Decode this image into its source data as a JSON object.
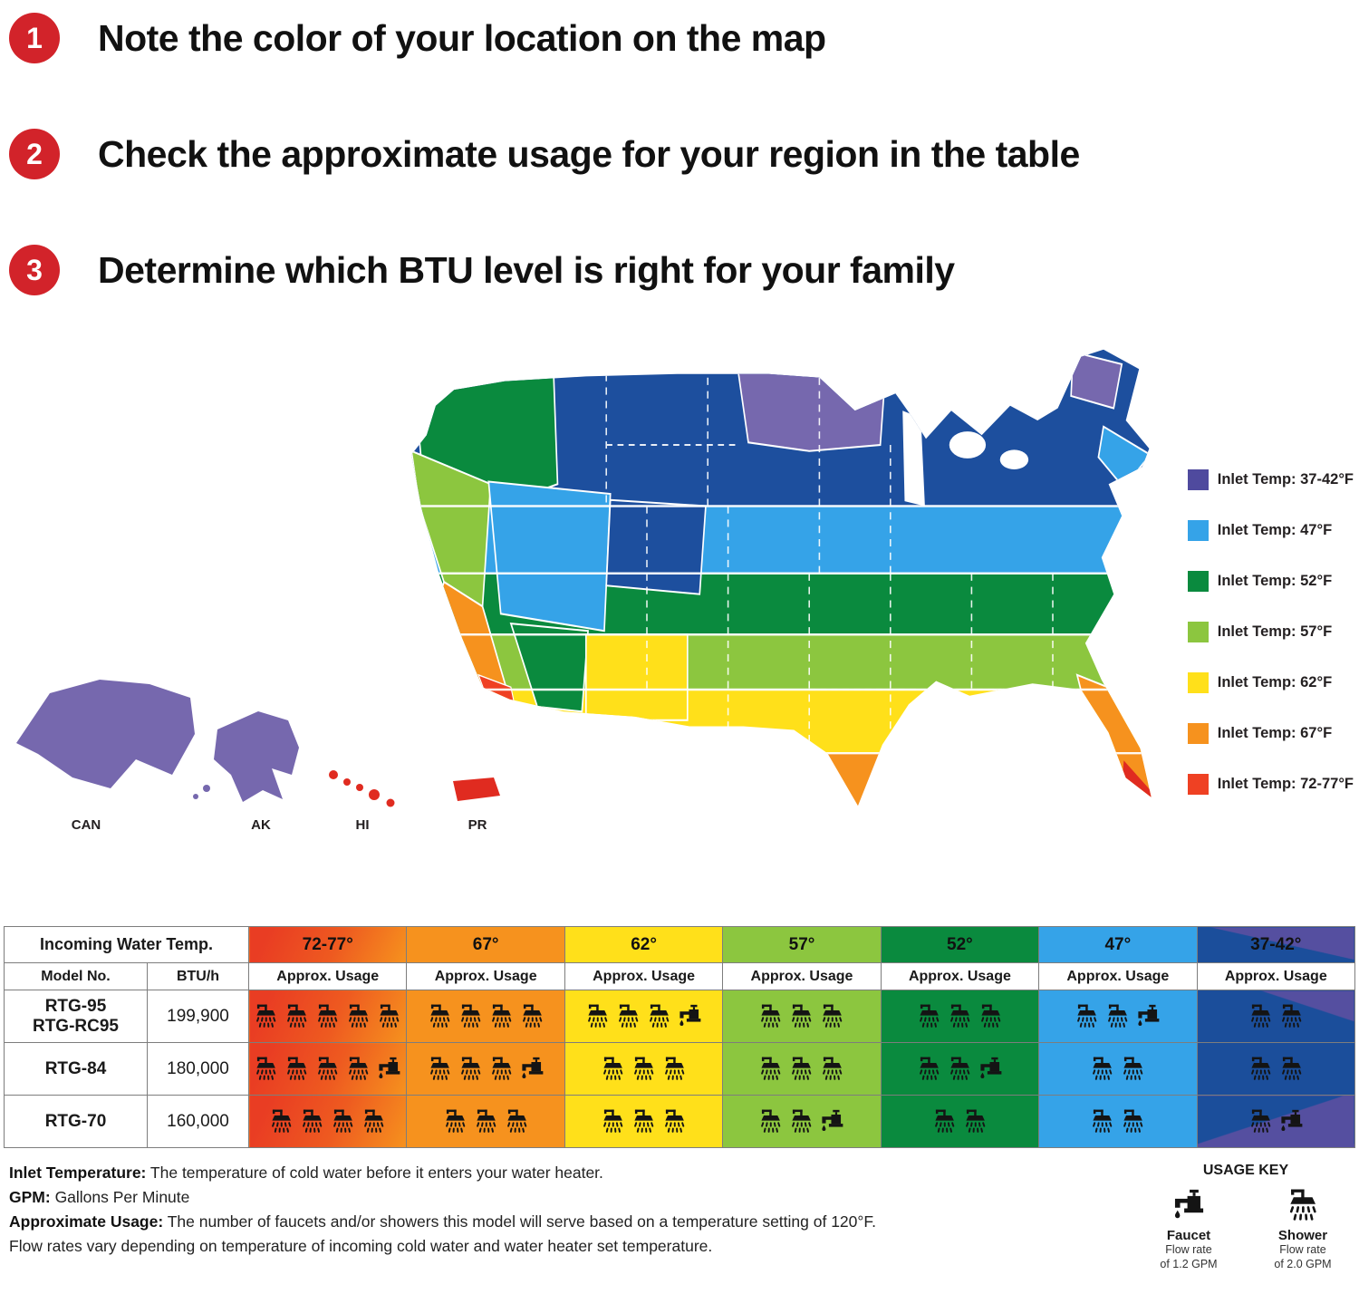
{
  "steps": [
    {
      "num": "1",
      "text": "Note the color of your location on the map"
    },
    {
      "num": "2",
      "text": "Check the approximate usage for your region in the table"
    },
    {
      "num": "3",
      "text": "Determine which BTU level is right for your family"
    }
  ],
  "colors": {
    "step_badge": "#D2232A",
    "map_red": "#E02B20",
    "map_purple": "#7668AE",
    "navy": "#1B4E9B"
  },
  "map": {
    "legend": [
      {
        "label": "Inlet Temp: 37-42°F",
        "color": "#4F4A9E"
      },
      {
        "label": "Inlet Temp: 47°F",
        "color": "#35A3E8"
      },
      {
        "label": "Inlet Temp: 52°F",
        "color": "#0A8A3E"
      },
      {
        "label": "Inlet Temp: 57°F",
        "color": "#8CC63F"
      },
      {
        "label": "Inlet Temp: 62°F",
        "color": "#FFE01A"
      },
      {
        "label": "Inlet Temp: 67°F",
        "color": "#F6921E"
      },
      {
        "label": "Inlet Temp: 72-77°F",
        "color": "#EF4123"
      }
    ],
    "insets": [
      {
        "label": "CAN"
      },
      {
        "label": "AK"
      },
      {
        "label": "HI"
      },
      {
        "label": "PR"
      }
    ]
  },
  "table": {
    "incoming_label": "Incoming Water Temp.",
    "model_label": "Model No.",
    "btu_label": "BTU/h",
    "usage_label": "Approx. Usage",
    "temps": [
      "72-77°",
      "67°",
      "62°",
      "57°",
      "52°",
      "47°",
      "37-42°"
    ],
    "temp_colors": [
      "#EF4123",
      "#F6921E",
      "#FFE01A",
      "#8CC63F",
      "#0A8A3E",
      "#35A3E8",
      "#1B4E9B"
    ],
    "rows": [
      {
        "model": [
          "RTG-95",
          "RTG-RC95"
        ],
        "btu": "199,900",
        "usage": [
          {
            "showers": 5,
            "faucets": 0
          },
          {
            "showers": 4,
            "faucets": 0
          },
          {
            "showers": 3,
            "faucets": 1
          },
          {
            "showers": 3,
            "faucets": 0
          },
          {
            "showers": 3,
            "faucets": 0
          },
          {
            "showers": 2,
            "faucets": 1
          },
          {
            "showers": 2,
            "faucets": 0
          }
        ]
      },
      {
        "model": [
          "RTG-84"
        ],
        "btu": "180,000",
        "usage": [
          {
            "showers": 4,
            "faucets": 1
          },
          {
            "showers": 3,
            "faucets": 1
          },
          {
            "showers": 3,
            "faucets": 0
          },
          {
            "showers": 3,
            "faucets": 0
          },
          {
            "showers": 2,
            "faucets": 1
          },
          {
            "showers": 2,
            "faucets": 0
          },
          {
            "showers": 2,
            "faucets": 0
          }
        ]
      },
      {
        "model": [
          "RTG-70"
        ],
        "btu": "160,000",
        "usage": [
          {
            "showers": 4,
            "faucets": 0
          },
          {
            "showers": 3,
            "faucets": 0
          },
          {
            "showers": 3,
            "faucets": 0
          },
          {
            "showers": 2,
            "faucets": 1
          },
          {
            "showers": 2,
            "faucets": 0
          },
          {
            "showers": 2,
            "faucets": 0
          },
          {
            "showers": 1,
            "faucets": 1
          }
        ]
      }
    ]
  },
  "footnotes": [
    {
      "term": "Inlet Temperature:",
      "text": " The temperature of cold water before it enters your water heater."
    },
    {
      "term": "GPM:",
      "text": " Gallons Per Minute"
    },
    {
      "term": "Approximate Usage:",
      "text": " The number of faucets and/or showers this model will serve based on a temperature setting of 120°F."
    },
    {
      "term": "",
      "text": "Flow rates vary depending on temperature of incoming cold water and water heater set temperature."
    }
  ],
  "usage_key": {
    "title": "USAGE KEY",
    "faucet_label": "Faucet",
    "faucet_flow_1": "Flow rate",
    "faucet_flow_2": "of 1.2 GPM",
    "shower_label": "Shower",
    "shower_flow_1": "Flow rate",
    "shower_flow_2": "of 2.0 GPM"
  }
}
